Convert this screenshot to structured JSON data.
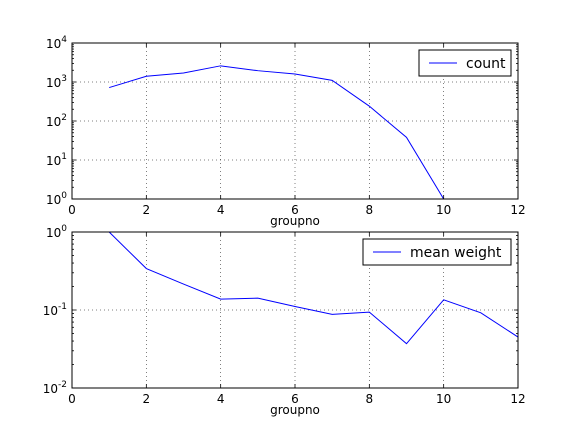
{
  "chart_data": [
    {
      "type": "line",
      "title": "",
      "xlabel": "groupno",
      "ylabel": "",
      "xlim": [
        0,
        12
      ],
      "ylim": [
        1,
        10000
      ],
      "yscale": "log",
      "grid": true,
      "legend_position": "top-right",
      "xticks": [
        "0",
        "2",
        "4",
        "6",
        "8",
        "10",
        "12"
      ],
      "yticks": [
        {
          "base": "10",
          "exp": "0"
        },
        {
          "base": "10",
          "exp": "1"
        },
        {
          "base": "10",
          "exp": "2"
        },
        {
          "base": "10",
          "exp": "3"
        },
        {
          "base": "10",
          "exp": "4"
        }
      ],
      "series": [
        {
          "name": "count",
          "color": "#0000ff",
          "x": [
            1,
            2,
            3,
            4,
            5,
            6,
            7,
            8,
            9,
            10
          ],
          "y": [
            720,
            1400,
            1700,
            2600,
            1950,
            1600,
            1100,
            240,
            38,
            1
          ]
        }
      ]
    },
    {
      "type": "line",
      "title": "",
      "xlabel": "groupno",
      "ylabel": "",
      "xlim": [
        0,
        12
      ],
      "ylim": [
        0.01,
        1
      ],
      "yscale": "log",
      "grid": true,
      "legend_position": "top-right",
      "xticks": [
        "0",
        "2",
        "4",
        "6",
        "8",
        "10",
        "12"
      ],
      "yticks": [
        {
          "base": "10",
          "exp": "-2"
        },
        {
          "base": "10",
          "exp": "-1"
        },
        {
          "base": "10",
          "exp": "0"
        }
      ],
      "series": [
        {
          "name": "mean weight",
          "color": "#0000ff",
          "x": [
            1,
            2,
            3,
            4,
            5,
            6,
            7,
            8,
            9,
            10,
            11,
            12
          ],
          "y": [
            1.0,
            0.34,
            0.215,
            0.138,
            0.142,
            0.111,
            0.088,
            0.094,
            0.037,
            0.135,
            0.092,
            0.045
          ]
        }
      ]
    }
  ]
}
